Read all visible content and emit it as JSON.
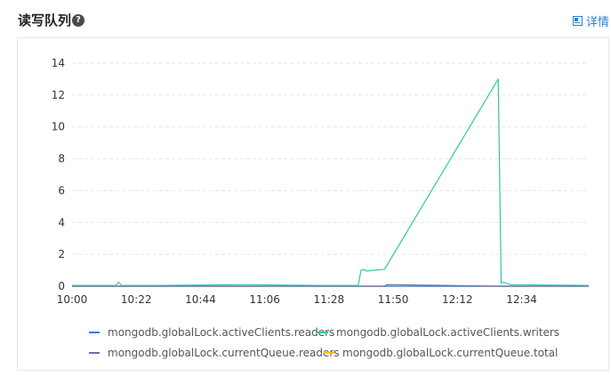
{
  "header": {
    "title": "读写队列",
    "help_icon": "question-circle-icon",
    "detail_label": "详情",
    "detail_icon": "panel-icon"
  },
  "chart_data": {
    "type": "line",
    "title": "",
    "xlabel": "",
    "ylabel": "",
    "x_range": [
      "10:00",
      "12:57"
    ],
    "x_ticks": [
      "10:00",
      "10:22",
      "10:44",
      "11:06",
      "11:28",
      "11:50",
      "12:12",
      "12:34"
    ],
    "ylim": [
      0,
      14
    ],
    "y_ticks": [
      0,
      2,
      4,
      6,
      8,
      10,
      12,
      14
    ],
    "grid": "horizontal-dashed",
    "legend_position": "bottom",
    "series": [
      {
        "name": "mongodb.globalLock.activeClients.readers",
        "color": "#2f7ed8",
        "x": [
          "10:00",
          "12:57"
        ],
        "values": [
          0,
          0
        ]
      },
      {
        "name": "mongodb.globalLock.activeClients.writers",
        "color": "#2ec7a5",
        "x": [
          "10:00",
          "10:15",
          "10:16",
          "10:17",
          "10:30",
          "11:00",
          "11:25",
          "11:38",
          "11:39",
          "11:40",
          "11:41",
          "11:43",
          "11:46",
          "11:47",
          "12:26",
          "12:27",
          "12:28",
          "12:30",
          "12:57"
        ],
        "values": [
          0.05,
          0.05,
          0.25,
          0.05,
          0.05,
          0.1,
          0.05,
          0.05,
          1.0,
          1.05,
          0.95,
          1.0,
          1.05,
          1.05,
          13.0,
          0.2,
          0.25,
          0.1,
          0.05
        ]
      },
      {
        "name": "mongodb.globalLock.currentQueue.readers",
        "color": "#6b6fa8",
        "x": [
          "10:00",
          "11:47",
          "11:48",
          "12:26",
          "12:27",
          "12:57"
        ],
        "values": [
          0,
          0,
          0.1,
          0,
          0,
          0
        ]
      },
      {
        "name": "mongodb.globalLock.currentQueue.total",
        "color": "#f0c419",
        "x": [
          "10:00",
          "12:57"
        ],
        "values": [
          0,
          0
        ]
      }
    ]
  }
}
